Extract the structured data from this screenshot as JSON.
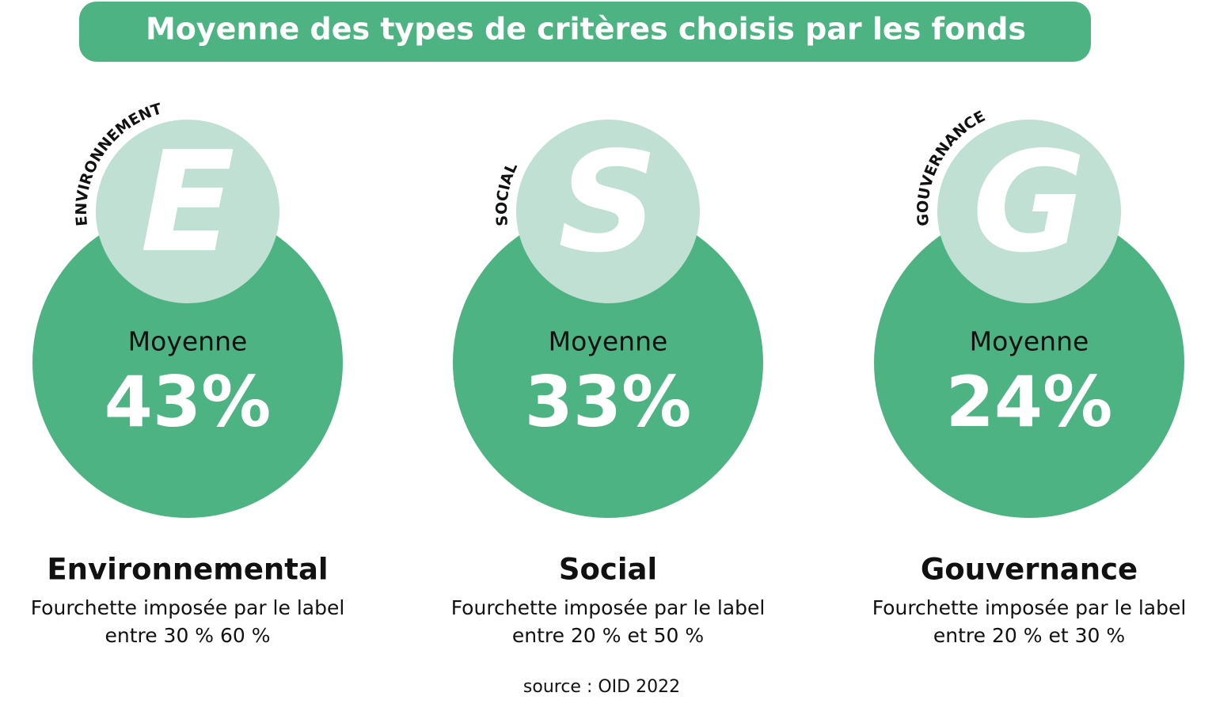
{
  "title": "Moyenne des types de critères choisis par les fonds",
  "items": [
    {
      "arc_label": "ENVIRONNEMENT",
      "letter": "E",
      "average_label": "Moyenne",
      "average": "43%",
      "name": "Environnemental",
      "range_lines": [
        "Fourchette imposée par le label",
        "entre 30 % 60 %"
      ]
    },
    {
      "arc_label": "SOCIAL",
      "letter": "S",
      "average_label": "Moyenne",
      "average": "33%",
      "name": "Social",
      "range_lines": [
        "Fourchette imposée par le label",
        "entre 20 % et 50 %"
      ]
    },
    {
      "arc_label": "GOUVERNANCE",
      "letter": "G",
      "average_label": "Moyenne",
      "average": "24%",
      "name": "Gouvernance",
      "range_lines": [
        "Fourchette imposée par le label",
        "entre 20 % et 30 %"
      ]
    }
  ],
  "source": "source : OID 2022"
}
